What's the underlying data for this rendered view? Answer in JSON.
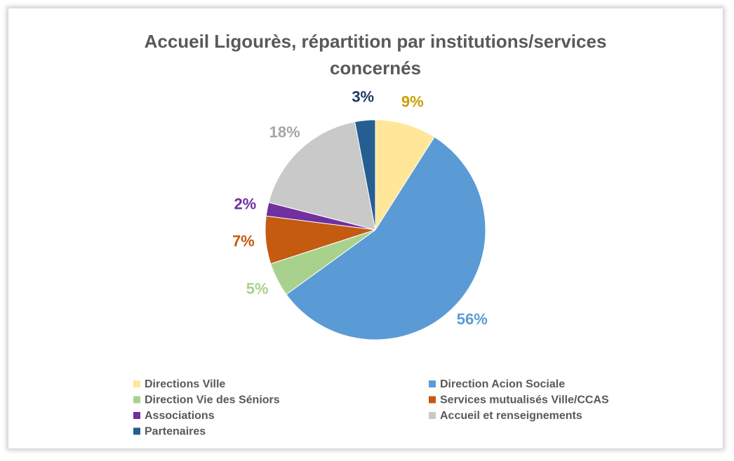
{
  "chart_data": {
    "type": "pie",
    "title": "Accueil Ligourès, répartition par institutions/services concernés",
    "categories": [
      "Directions Ville",
      "Direction Acion Sociale",
      "Direction Vie des Séniors",
      "Services mutualisés Ville/CCAS",
      "Associations",
      "Accueil et renseignements",
      "Partenaires"
    ],
    "values": [
      9,
      56,
      5,
      7,
      2,
      18,
      3
    ],
    "value_labels": [
      "9%",
      "56%",
      "5%",
      "7%",
      "2%",
      "18%",
      "3%"
    ],
    "colors": [
      "#FFE699",
      "#5B9BD5",
      "#A9D18E",
      "#C55A11",
      "#7030A0",
      "#C9C9C9",
      "#255E91"
    ],
    "label_colors": [
      "#C9A000",
      "#5B9BD5",
      "#A9D18E",
      "#C55A11",
      "#7030A0",
      "#A6A6A6",
      "#203864"
    ],
    "legend": "bottom"
  }
}
